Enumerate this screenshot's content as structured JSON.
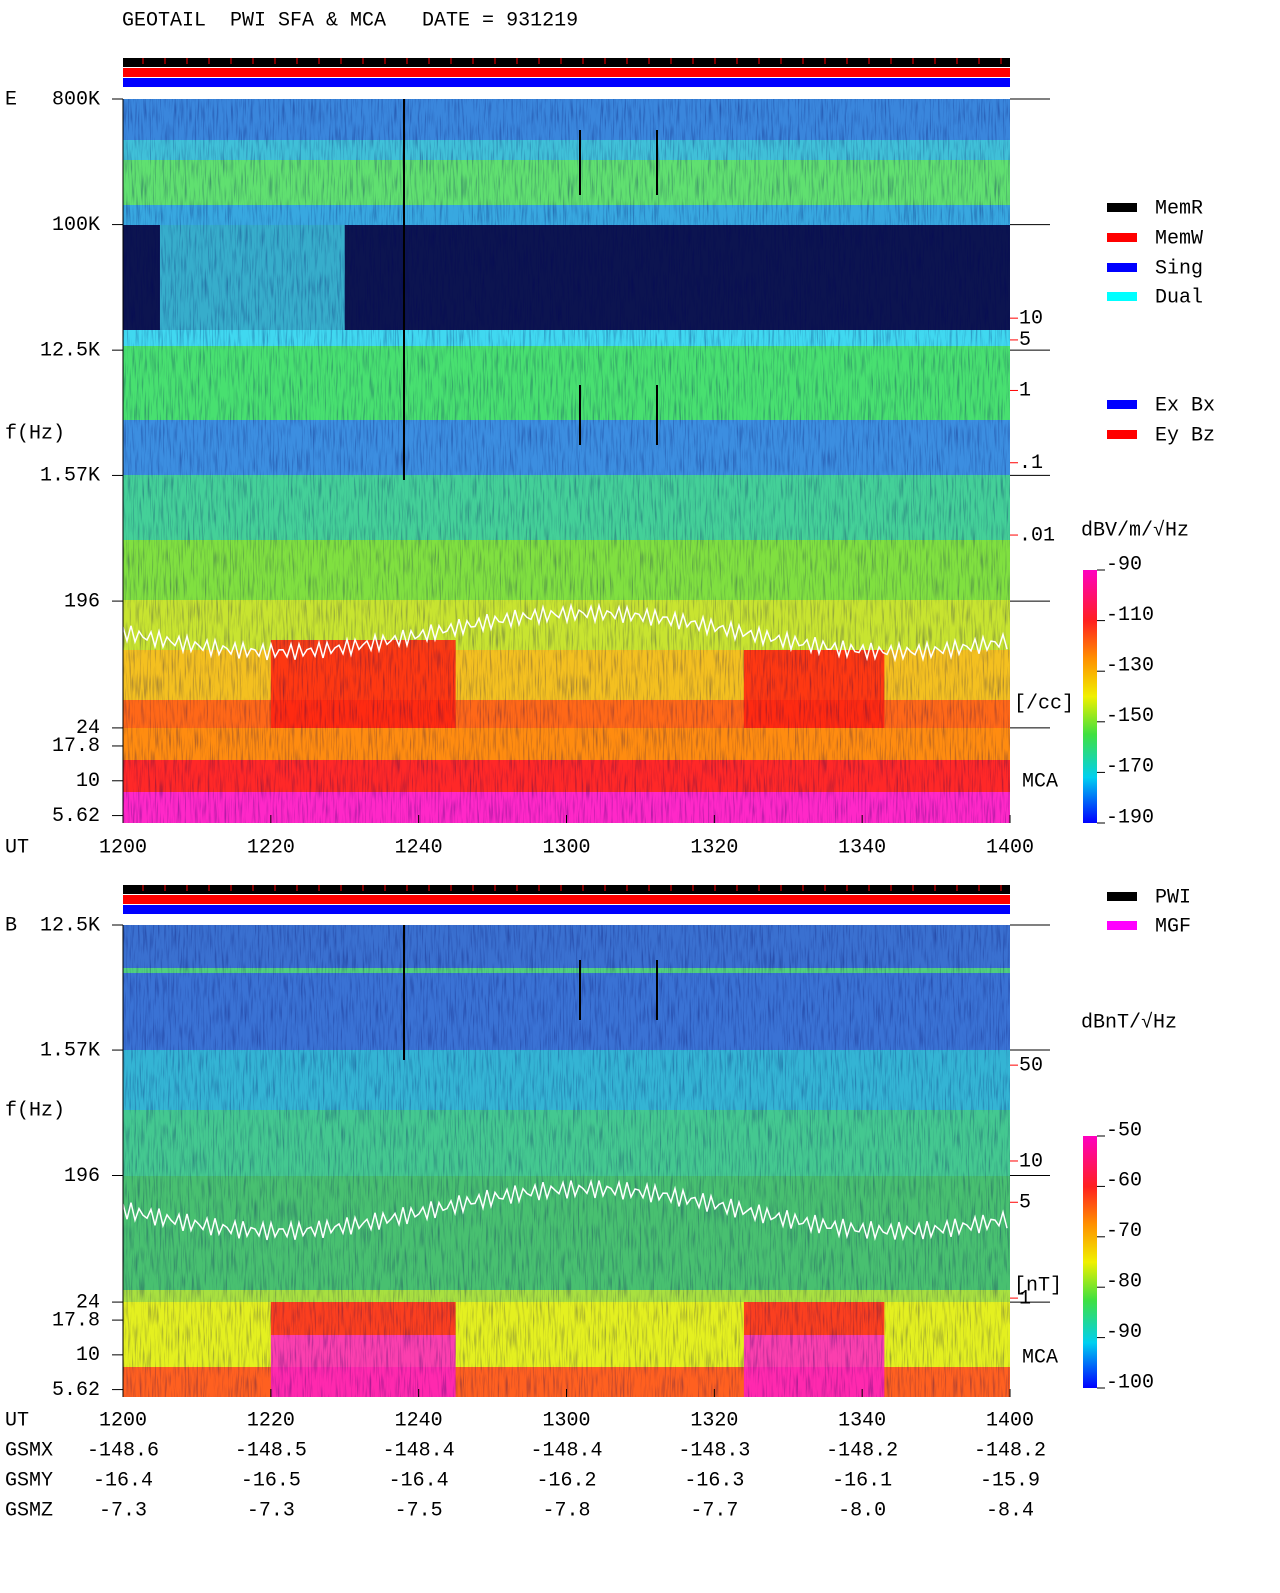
{
  "header": {
    "title": "GEOTAIL  PWI SFA & MCA   DATE = 931219"
  },
  "chart_data": [
    {
      "type": "spectrogram",
      "panel_label": "E",
      "y_label": "f(Hz)",
      "x_label": "UT",
      "channel_label": "MCA",
      "log_y": true,
      "xlim": [
        720,
        840
      ],
      "xticks": [
        {
          "value": 720,
          "label": "1200"
        },
        {
          "value": 740,
          "label": "1220"
        },
        {
          "value": 760,
          "label": "1240"
        },
        {
          "value": 780,
          "label": "1300"
        },
        {
          "value": 800,
          "label": "1320"
        },
        {
          "value": 820,
          "label": "1340"
        },
        {
          "value": 840,
          "label": "1400"
        }
      ],
      "ylim": [
        4.97,
        800000
      ],
      "yticks": [
        {
          "value": 800000,
          "label": "800K"
        },
        {
          "value": 100000,
          "label": "100K"
        },
        {
          "value": 12500,
          "label": "12.5K"
        },
        {
          "value": 1570,
          "label": "1.57K"
        },
        196,
        24,
        17.8,
        10,
        5.62
      ],
      "y2lim": [
        1.04e-06,
        10750
      ],
      "y2ticks": [
        10,
        5,
        1,
        {
          "value": 0.1,
          "label": ".1"
        },
        {
          "value": 0.01,
          "label": ".01"
        }
      ],
      "y2_label": "[/cc]",
      "y2_color": "#ff0000",
      "colorbar": {
        "label": "dBV/m/√Hz",
        "lim": [
          -190,
          -90
        ],
        "ticks": [
          -90,
          -110,
          -130,
          -150,
          -170,
          -190
        ]
      },
      "legends": [
        [
          {
            "name": "MemR",
            "color": "#000000"
          },
          {
            "name": "MemW",
            "color": "#ff0000"
          },
          {
            "name": "Sing",
            "color": "#0000ff"
          },
          {
            "name": "Dual",
            "color": "#00ffff"
          }
        ],
        [
          {
            "name": "Ex Bx",
            "color": "#0000ff"
          },
          {
            "name": "Ey Bz",
            "color": "#ff0000"
          }
        ]
      ]
    },
    {
      "type": "spectrogram",
      "panel_label": "B",
      "y_label": "f(Hz)",
      "x_label": "UT",
      "channel_label": "MCA",
      "log_y": true,
      "xlim": [
        720,
        840
      ],
      "xticks": [
        {
          "value": 720,
          "label": "1200"
        },
        {
          "value": 740,
          "label": "1220"
        },
        {
          "value": 760,
          "label": "1240"
        },
        {
          "value": 780,
          "label": "1300"
        },
        {
          "value": 800,
          "label": "1320"
        },
        {
          "value": 820,
          "label": "1340"
        },
        {
          "value": 840,
          "label": "1400"
        }
      ],
      "ylim": [
        4.97,
        12500
      ],
      "yticks": [
        {
          "value": 12500,
          "label": "12.5K"
        },
        {
          "value": 1570,
          "label": "1.57K"
        },
        196,
        24,
        17.8,
        10,
        5.62
      ],
      "y2lim": [
        0.19,
        526
      ],
      "y2ticks": [
        50,
        10,
        5,
        1
      ],
      "y2_label": "[nT]",
      "y2_color": "#ff0000",
      "colorbar": {
        "label": "dBnT/√Hz",
        "lim": [
          -100,
          -50
        ],
        "ticks": [
          -50,
          -60,
          -70,
          -80,
          -90,
          -100
        ]
      },
      "legends": [
        [
          {
            "name": "PWI",
            "color": "#000000"
          },
          {
            "name": "MGF",
            "color": "#ff00ff"
          }
        ]
      ]
    }
  ],
  "orbit": {
    "rows": [
      {
        "label": "GSMX",
        "values": [
          "-148.6",
          "-148.5",
          "-148.4",
          "-148.4",
          "-148.3",
          "-148.2",
          "-148.2"
        ]
      },
      {
        "label": "GSMY",
        "values": [
          "-16.4",
          "-16.5",
          "-16.4",
          "-16.2",
          "-16.3",
          "-16.1",
          "-15.9"
        ]
      },
      {
        "label": "GSMZ",
        "values": [
          "-7.3",
          "-7.3",
          "-7.5",
          "-7.8",
          "-7.7",
          "-8.0",
          "-8.4"
        ]
      }
    ]
  }
}
